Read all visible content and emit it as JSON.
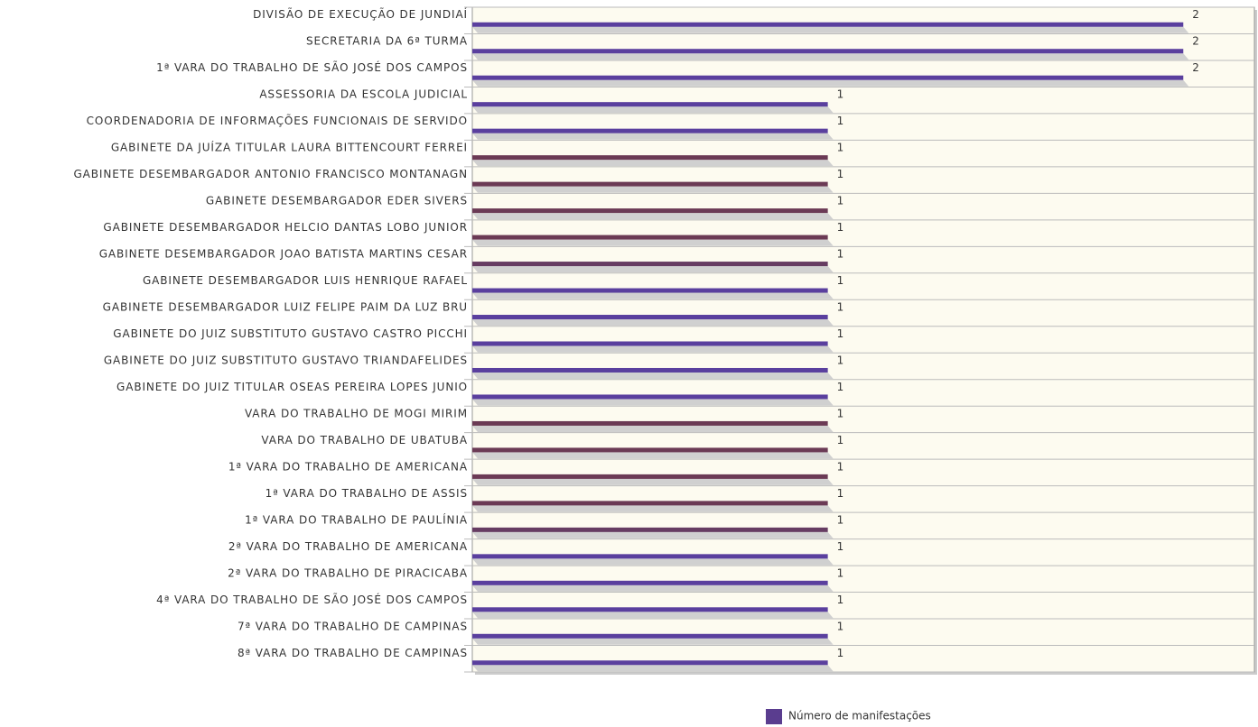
{
  "chart_data": {
    "type": "hbar",
    "categories": [
      "DIVISÃO DE EXECUÇÃO DE JUNDIAÍ",
      "SECRETARIA DA 6ª TURMA",
      "1ª VARA DO TRABALHO DE SÃO JOSÉ DOS CAMPOS",
      "ASSESSORIA DA ESCOLA JUDICIAL",
      "COORDENADORIA DE INFORMAÇÕES FUNCIONAIS DE SERVIDO",
      "GABINETE DA JUÍZA TITULAR LAURA BITTENCOURT FERREI",
      "GABINETE DESEMBARGADOR ANTONIO FRANCISCO MONTANAGN",
      "GABINETE DESEMBARGADOR EDER SIVERS",
      "GABINETE DESEMBARGADOR HELCIO DANTAS LOBO JUNIOR",
      "GABINETE DESEMBARGADOR JOAO BATISTA MARTINS CESAR",
      "GABINETE DESEMBARGADOR LUIS HENRIQUE RAFAEL",
      "GABINETE DESEMBARGADOR LUIZ FELIPE PAIM DA LUZ BRU",
      "GABINETE DO JUIZ SUBSTITUTO GUSTAVO CASTRO PICCHI",
      "GABINETE DO JUIZ SUBSTITUTO GUSTAVO TRIANDAFELIDES",
      "GABINETE DO JUIZ TITULAR OSEAS PEREIRA LOPES JUNIO",
      "VARA DO TRABALHO DE MOGI MIRIM",
      "VARA DO TRABALHO DE UBATUBA",
      "1ª VARA DO TRABALHO DE AMERICANA",
      "1ª VARA DO TRABALHO DE ASSIS",
      "1ª VARA DO TRABALHO DE PAULÍNIA",
      "2ª VARA DO TRABALHO DE AMERICANA",
      "2ª VARA DO TRABALHO DE PIRACICABA",
      "4ª VARA DO TRABALHO DE SÃO JOSÉ DOS CAMPOS",
      "7ª VARA DO TRABALHO DE CAMPINAS",
      "8ª VARA DO TRABALHO DE CAMPINAS"
    ],
    "series": [
      {
        "name": "Número de manifestações",
        "color": "#5a3d8f",
        "values": [
          2,
          2,
          2,
          1,
          1,
          1,
          1,
          1,
          1,
          1,
          1,
          1,
          1,
          1,
          1,
          1,
          1,
          1,
          1,
          1,
          1,
          1,
          1,
          1,
          1
        ],
        "colors": [
          "#5a3f9e",
          "#5a3f9e",
          "#5a3f9e",
          "#5a3f9e",
          "#5a3f9e",
          "#6b3a55",
          "#6b3a55",
          "#6b3a55",
          "#6b3a55",
          "#663c62",
          "#5a3f9e",
          "#5a3f9e",
          "#5a3f9e",
          "#5a3f9e",
          "#5a3f9e",
          "#6b3a55",
          "#6b3a55",
          "#6b3a55",
          "#6b3a55",
          "#663c62",
          "#5a3f9e",
          "#5a3f9e",
          "#5a3f9e",
          "#5a3f9e",
          "#5a3f9e"
        ]
      }
    ],
    "xlim": [
      0,
      2.2
    ],
    "legend": "bottom"
  }
}
